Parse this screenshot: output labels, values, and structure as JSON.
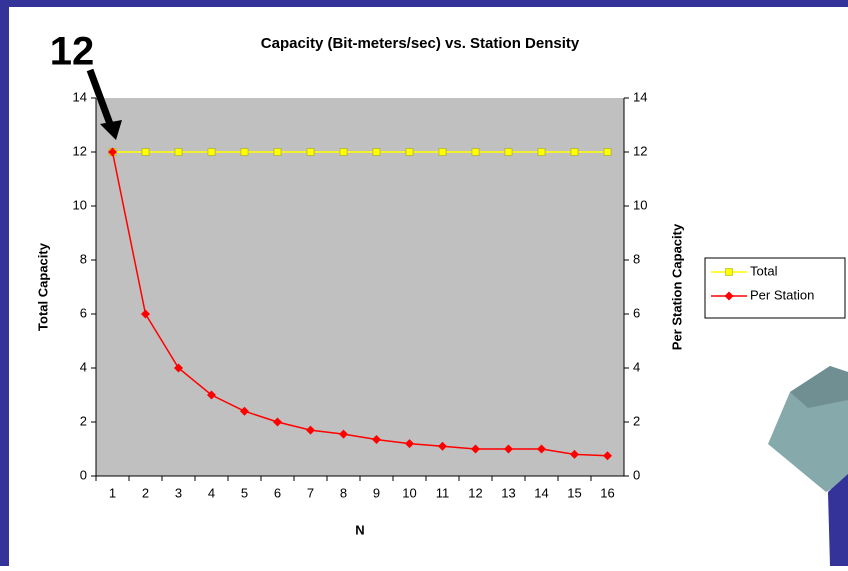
{
  "chart_data": {
    "type": "line",
    "title": "Capacity (Bit-meters/sec) vs. Station Density",
    "annotation": "12",
    "x_label": "N",
    "y_label": "Total Capacity",
    "y2_label": "Per Station Capacity",
    "categories": [
      "1",
      "2",
      "3",
      "4",
      "5",
      "6",
      "7",
      "8",
      "9",
      "10",
      "11",
      "12",
      "13",
      "14",
      "15",
      "16"
    ],
    "series": [
      {
        "name": "Total",
        "color": "#ffff00",
        "marker": "square",
        "values": [
          12,
          12,
          12,
          12,
          12,
          12,
          12,
          12,
          12,
          12,
          12,
          12,
          12,
          12,
          12,
          12
        ]
      },
      {
        "name": "Per Station",
        "color": "#ff0000",
        "marker": "diamond",
        "axis": "y2",
        "values": [
          12,
          6,
          4,
          3,
          2.4,
          2,
          1.7,
          1.55,
          1.35,
          1.2,
          1.1,
          1,
          1,
          1,
          0.8,
          0.75
        ]
      }
    ],
    "ylim": [
      0,
      14
    ],
    "yticks": [
      0,
      2,
      4,
      6,
      8,
      10,
      12,
      14
    ],
    "y2lim": [
      0,
      14
    ],
    "y2ticks": [
      0,
      2,
      4,
      6,
      8,
      10,
      12,
      14
    ],
    "legend": "right"
  }
}
